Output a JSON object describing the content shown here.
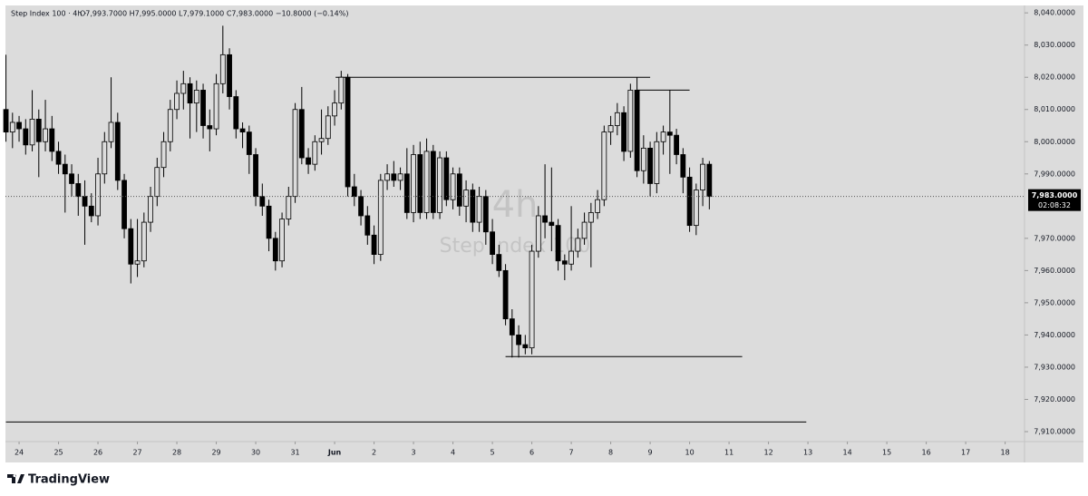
{
  "chart_data": {
    "type": "candlestick",
    "title": "Step Index 100 · 4h ·",
    "ohlc_header": "O7,993.7000 H7,995.0000 L7,979.1000 C7,983.0000 −10.8000 (−0.14%)",
    "watermark_interval": "4h",
    "watermark_symbol": "Step Index 100",
    "brand": "TradingView",
    "xlim": [
      -8.3,
      611.8
    ],
    "ylim": [
      7906.9,
      8042.3
    ],
    "xticks": [
      {
        "value": 0,
        "label": "24"
      },
      {
        "value": 24,
        "label": "25"
      },
      {
        "value": 48,
        "label": "26"
      },
      {
        "value": 72,
        "label": "27"
      },
      {
        "value": 96,
        "label": "28"
      },
      {
        "value": 120,
        "label": "29"
      },
      {
        "value": 144,
        "label": "30"
      },
      {
        "value": 168,
        "label": "31"
      },
      {
        "value": 192,
        "label": "Jun"
      },
      {
        "value": 216,
        "label": "2"
      },
      {
        "value": 240,
        "label": "3"
      },
      {
        "value": 264,
        "label": "4"
      },
      {
        "value": 288,
        "label": "5"
      },
      {
        "value": 312,
        "label": "6"
      },
      {
        "value": 336,
        "label": "7"
      },
      {
        "value": 360,
        "label": "8"
      },
      {
        "value": 384,
        "label": "9"
      },
      {
        "value": 408,
        "label": "10"
      },
      {
        "value": 432,
        "label": "11"
      },
      {
        "value": 456,
        "label": "12"
      },
      {
        "value": 480,
        "label": "13"
      },
      {
        "value": 504,
        "label": "14"
      },
      {
        "value": 528,
        "label": "15"
      },
      {
        "value": 552,
        "label": "16"
      },
      {
        "value": 576,
        "label": "17"
      },
      {
        "value": 600,
        "label": "18"
      }
    ],
    "yticks": [
      {
        "value": 8040,
        "label": "8,040.0000"
      },
      {
        "value": 8030,
        "label": "8,030.0000"
      },
      {
        "value": 8020,
        "label": "8,020.0000"
      },
      {
        "value": 8010,
        "label": "8,010.0000"
      },
      {
        "value": 8000,
        "label": "8,000.0000"
      },
      {
        "value": 7990,
        "label": "7,990.0000"
      },
      {
        "value": 7970,
        "label": "7,970.0000"
      },
      {
        "value": 7960,
        "label": "7,960.0000"
      },
      {
        "value": 7950,
        "label": "7,950.0000"
      },
      {
        "value": 7940,
        "label": "7,940.0000"
      },
      {
        "value": 7930,
        "label": "7,930.0000"
      },
      {
        "value": 7920,
        "label": "7,920.0000"
      },
      {
        "value": 7910,
        "label": "7,910.0000"
      }
    ],
    "last_price": {
      "value": 7983,
      "label": "7,983.0000",
      "countdown": "02:08:32"
    },
    "levels": [
      {
        "y": 8020,
        "x": [
          192.6,
          384
        ]
      },
      {
        "y": 8016,
        "x": [
          376,
          408
        ]
      },
      {
        "y": 7933.3,
        "x": [
          296,
          440
        ]
      },
      {
        "y": 7913,
        "x": [
          -8,
          479
        ]
      }
    ],
    "up_color": "#dcdcdc",
    "down_color": "#000000",
    "x": [
      -8,
      -4,
      0,
      4,
      8,
      12,
      16,
      20,
      24,
      28,
      32,
      36,
      40,
      44,
      48,
      52,
      56,
      60,
      64,
      68,
      72,
      76,
      80,
      84,
      88,
      92,
      96,
      100,
      104,
      108,
      112,
      116,
      120,
      124,
      128,
      132,
      136,
      140,
      144,
      148,
      152,
      156,
      160,
      164,
      168,
      172,
      176,
      180,
      184,
      188,
      192,
      196,
      200,
      204,
      208,
      212,
      216,
      220,
      224,
      228,
      232,
      236,
      240,
      244,
      248,
      252,
      256,
      260,
      264,
      268,
      272,
      276,
      280,
      284,
      288,
      292,
      296,
      300,
      304,
      308,
      312,
      316,
      320,
      324,
      328,
      332,
      336,
      340,
      344,
      348,
      352,
      356,
      360,
      364,
      368,
      372,
      376,
      380,
      384,
      388,
      392,
      396,
      400,
      404,
      408,
      412,
      416,
      420
    ],
    "open": [
      8010,
      8003,
      8006,
      8004,
      7999,
      8007,
      8000,
      8004,
      7997,
      7993,
      7990,
      7987,
      7983,
      7980,
      7977,
      7990,
      8000,
      8006,
      7988,
      7973,
      7962,
      7963,
      7975,
      7983,
      7992,
      8000,
      8010,
      8015,
      8018,
      8012,
      8016,
      8005,
      8004,
      8018,
      8027,
      8014,
      8004,
      8003,
      7996,
      7983,
      7980,
      7970,
      7963,
      7976,
      7983,
      8010,
      7995,
      7993,
      8000,
      8001,
      8008,
      8012,
      8020,
      7986,
      7983,
      7977,
      7971,
      7965,
      7988,
      7990,
      7988,
      7990,
      7978,
      7996,
      7978,
      7997,
      7978,
      7995,
      7982,
      7990,
      7980,
      7985,
      7975,
      7983,
      7972,
      7965,
      7960,
      7945,
      7940,
      7937,
      7936,
      7966,
      7977,
      7975,
      7974,
      7963,
      7962,
      7966,
      7970,
      7975,
      7978,
      7982,
      8003,
      8005,
      8009,
      7997,
      8016,
      7991,
      7998,
      7987,
      8000,
      8003,
      8002,
      7996,
      7989,
      7974,
      7985,
      7993
    ],
    "high": [
      8027,
      8009,
      8008,
      8007,
      8016,
      8010,
      8013,
      8008,
      8000,
      7996,
      7993,
      7990,
      7988,
      7984,
      7995,
      8003,
      8020,
      8009,
      7990,
      7976,
      7976,
      7978,
      7986,
      7995,
      8003,
      8013,
      8019,
      8022,
      8020,
      8019,
      8018,
      8010,
      8021,
      8036,
      8029,
      8016,
      8006,
      8005,
      7998,
      7987,
      7982,
      7972,
      7978,
      7986,
      8012,
      8017,
      7998,
      8002,
      8010,
      8011,
      8016,
      8022,
      8021,
      7990,
      7985,
      7980,
      7974,
      7990,
      7993,
      7994,
      7992,
      7998,
      7999,
      8000,
      8001,
      7999,
      7997,
      7997,
      7992,
      7992,
      7988,
      7987,
      7986,
      7985,
      7976,
      7968,
      7962,
      7948,
      7943,
      7940,
      7968,
      7980,
      7993,
      7992,
      7976,
      7965,
      7980,
      7973,
      7978,
      7981,
      7985,
      8005,
      8008,
      8012,
      8011,
      8018,
      8020,
      8002,
      8000,
      8003,
      8005,
      8016,
      8004,
      7998,
      7992,
      7987,
      7995,
      7994
    ],
    "low": [
      8000,
      7998,
      8000,
      7996,
      7997,
      7989,
      7997,
      7994,
      7990,
      7978,
      7983,
      7977,
      7968,
      7975,
      7974,
      7987,
      7998,
      7985,
      7970,
      7956,
      7958,
      7961,
      7972,
      7980,
      7989,
      7997,
      8007,
      8010,
      8001,
      8003,
      8001,
      7997,
      8002,
      8015,
      8010,
      8001,
      7998,
      7990,
      7980,
      7977,
      7966,
      7960,
      7961,
      7974,
      7981,
      7993,
      7990,
      7991,
      7996,
      7999,
      8005,
      8010,
      7983,
      7980,
      7974,
      7968,
      7962,
      7963,
      7985,
      7986,
      7985,
      7976,
      7975,
      7976,
      7976,
      7976,
      7976,
      7980,
      7979,
      7977,
      7975,
      7972,
      7972,
      7968,
      7962,
      7958,
      7943,
      7933,
      7933,
      7934,
      7934,
      7964,
      7970,
      7966,
      7960,
      7957,
      7960,
      7964,
      7968,
      7961,
      7976,
      7980,
      7999,
      8002,
      7994,
      7995,
      7989,
      7987,
      7983,
      7984,
      7996,
      7990,
      7993,
      7984,
      7972,
      7971,
      7980,
      7979
    ],
    "close": [
      8003,
      8006,
      8004,
      7999,
      8007,
      8000,
      8004,
      7997,
      7993,
      7990,
      7987,
      7983,
      7980,
      7977,
      7990,
      8000,
      8006,
      7988,
      7973,
      7962,
      7963,
      7975,
      7983,
      7992,
      8000,
      8010,
      8015,
      8018,
      8012,
      8016,
      8005,
      8004,
      8018,
      8027,
      8014,
      8004,
      8003,
      7996,
      7983,
      7980,
      7970,
      7963,
      7976,
      7983,
      8010,
      7995,
      7993,
      8000,
      8001,
      8008,
      8012,
      8020,
      7986,
      7983,
      7977,
      7971,
      7965,
      7988,
      7990,
      7988,
      7990,
      7978,
      7996,
      7978,
      7997,
      7978,
      7995,
      7982,
      7990,
      7980,
      7985,
      7975,
      7983,
      7972,
      7965,
      7960,
      7945,
      7940,
      7937,
      7936,
      7966,
      7977,
      7975,
      7974,
      7963,
      7962,
      7966,
      7970,
      7975,
      7978,
      7982,
      8003,
      8005,
      8009,
      7997,
      8016,
      7991,
      7998,
      7987,
      8000,
      8003,
      8002,
      7996,
      7989,
      7974,
      7985,
      7993,
      7983
    ]
  }
}
